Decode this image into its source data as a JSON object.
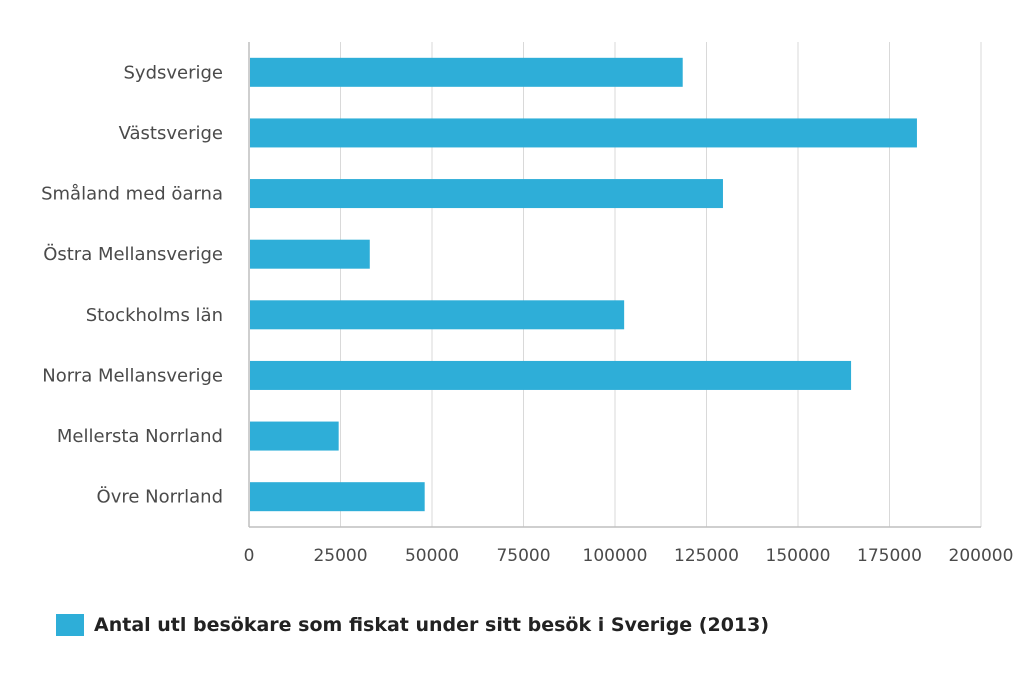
{
  "chart_data": {
    "type": "bar",
    "orientation": "horizontal",
    "categories": [
      "Sydsverige",
      "Västsverige",
      "Småland med öarna",
      "Östra Mellansverige",
      "Stockholms län",
      "Norra Mellansverige",
      "Mellersta Norrland",
      "Övre Norrland"
    ],
    "series": [
      {
        "name": "Antal utl besökare som fiskat under sitt besök i Sverige (2013)",
        "values": [
          118500,
          182500,
          129500,
          33000,
          102500,
          164500,
          24500,
          48000
        ]
      }
    ],
    "xticks": [
      "0",
      "25000",
      "50000",
      "75000",
      "100000",
      "125000",
      "150000",
      "175000",
      "200000"
    ],
    "xlim": [
      0,
      200000
    ],
    "grid": true,
    "legend_position": "bottom-left",
    "bar_color": "#2eaed8"
  }
}
